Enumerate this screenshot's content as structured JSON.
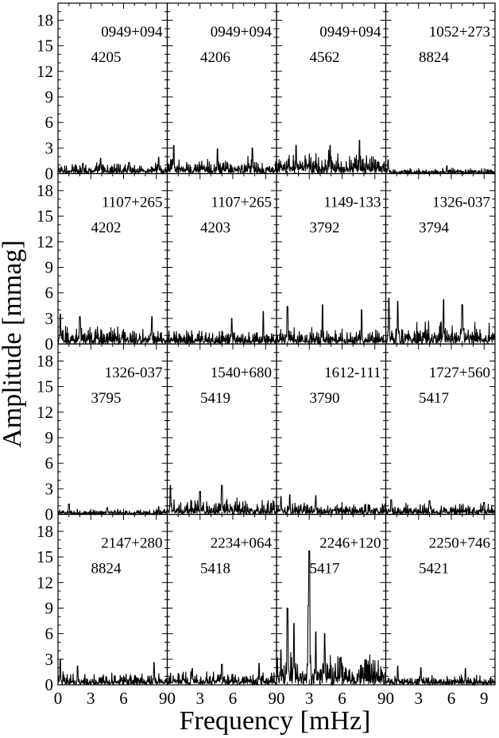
{
  "chart_data": {
    "type": "line",
    "layout": "4x4 grid of periodograms sharing axes",
    "xlabel": "Frequency [mHz]",
    "ylabel": "Amplitude [mmag]",
    "xlim": [
      0,
      10
    ],
    "ylim": [
      0,
      20
    ],
    "x_ticks": [
      0,
      3,
      6,
      9
    ],
    "x_tick_labels_bottom": [
      "0",
      "3",
      "6",
      "90",
      "3",
      "6",
      "90",
      "3",
      "6",
      "90",
      "3",
      "6",
      "9"
    ],
    "y_ticks": [
      0,
      3,
      6,
      9,
      12,
      15,
      18
    ],
    "y_tick_labels": [
      "0",
      "3",
      "6",
      "9",
      "12",
      "15",
      "18"
    ],
    "panels": [
      {
        "name": "0949+094",
        "run": "4205",
        "noise": 0.9,
        "spikes": [
          [
            2.3,
            1.2
          ],
          [
            3.9,
            1.8
          ],
          [
            6.5,
            1.3
          ],
          [
            9.2,
            1.9
          ]
        ]
      },
      {
        "name": "0949+094",
        "run": "4206",
        "noise": 1.3,
        "spikes": [
          [
            0.6,
            3.3
          ],
          [
            4.6,
            2.9
          ],
          [
            7.8,
            3.0
          ]
        ]
      },
      {
        "name": "0949+094",
        "run": "4562",
        "noise": 1.8,
        "spikes": [
          [
            1.8,
            3.3
          ],
          [
            4.9,
            3.3
          ],
          [
            7.6,
            3.9
          ]
        ]
      },
      {
        "name": "1052+273",
        "run": "8824",
        "noise": 0.45,
        "spikes": [
          [
            0.2,
            1.6
          ],
          [
            5.6,
            0.9
          ]
        ]
      },
      {
        "name": "1107+265",
        "run": "4202",
        "noise": 1.5,
        "spikes": [
          [
            0.2,
            3.5
          ],
          [
            2.0,
            3.2
          ],
          [
            8.6,
            3.2
          ]
        ]
      },
      {
        "name": "1107+265",
        "run": "4203",
        "noise": 1.1,
        "spikes": [
          [
            5.9,
            3.0
          ],
          [
            8.8,
            3.8
          ]
        ]
      },
      {
        "name": "1149-133",
        "run": "3792",
        "noise": 1.3,
        "spikes": [
          [
            1.0,
            4.4
          ],
          [
            4.2,
            4.6
          ],
          [
            7.8,
            4.0
          ]
        ]
      },
      {
        "name": "1326-037",
        "run": "3794",
        "noise": 1.8,
        "spikes": [
          [
            0.3,
            5.4
          ],
          [
            1.1,
            5.0
          ],
          [
            5.3,
            5.2
          ],
          [
            7.0,
            4.6
          ]
        ]
      },
      {
        "name": "1326-037",
        "run": "3795",
        "noise": 0.45,
        "spikes": [
          [
            1.0,
            1.2
          ],
          [
            4.5,
            0.8
          ],
          [
            9.2,
            0.9
          ]
        ]
      },
      {
        "name": "1540+680",
        "run": "5419",
        "noise": 1.3,
        "spikes": [
          [
            0.3,
            3.4
          ],
          [
            5.0,
            3.4
          ],
          [
            3.0,
            2.7
          ]
        ]
      },
      {
        "name": "1612-111",
        "run": "3790",
        "noise": 1.0,
        "spikes": [
          [
            0.4,
            2.1
          ],
          [
            1.2,
            2.3
          ],
          [
            3.6,
            2.2
          ]
        ]
      },
      {
        "name": "1727+560",
        "run": "5417",
        "noise": 0.9,
        "spikes": [
          [
            0.5,
            1.7
          ],
          [
            4.0,
            1.6
          ],
          [
            9.0,
            1.4
          ]
        ]
      },
      {
        "name": "2147+280",
        "run": "8824",
        "noise": 1.0,
        "spikes": [
          [
            0.2,
            2.9
          ],
          [
            8.8,
            2.6
          ],
          [
            1.8,
            2.2
          ]
        ]
      },
      {
        "name": "2234+064",
        "run": "5418",
        "noise": 1.1,
        "spikes": [
          [
            5.0,
            2.4
          ],
          [
            8.4,
            2.5
          ],
          [
            2.3,
            1.9
          ]
        ]
      },
      {
        "name": "2246+120",
        "run": "5417",
        "noise": 2.6,
        "spikes": [
          [
            3.0,
            15.7
          ],
          [
            1.0,
            9.0
          ],
          [
            2.9,
            9.3
          ],
          [
            1.6,
            7.2
          ],
          [
            3.6,
            6.2
          ],
          [
            4.4,
            6.0
          ],
          [
            0.4,
            4.1
          ],
          [
            5.9,
            3.2
          ],
          [
            7.9,
            2.0
          ]
        ]
      },
      {
        "name": "2250+746",
        "run": "5421",
        "noise": 0.8,
        "spikes": [
          [
            1.1,
            2.2
          ],
          [
            3.2,
            2.0
          ],
          [
            7.3,
            1.9
          ]
        ]
      }
    ]
  }
}
